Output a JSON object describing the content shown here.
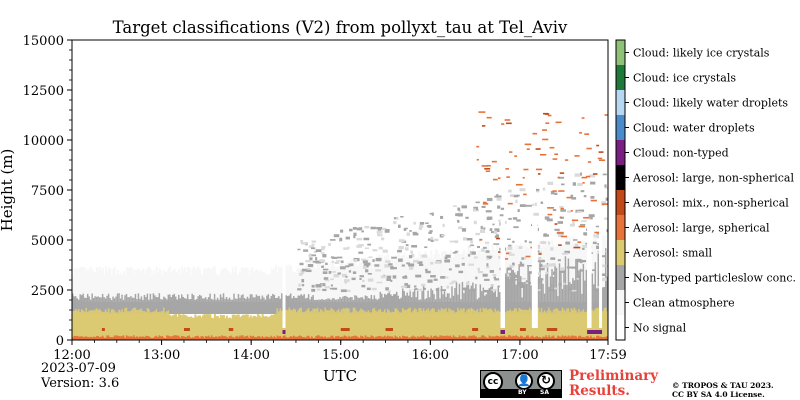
{
  "chart_data": {
    "type": "heatmap",
    "title": "Target classifications (V2) from pollyxt_tau at Tel_Aviv",
    "xlabel": "UTC",
    "ylabel": "Height (m)",
    "xlim": [
      "12:00",
      "17:59"
    ],
    "ylim": [
      0,
      15000
    ],
    "x_ticks": [
      "12:00",
      "13:00",
      "14:00",
      "15:00",
      "16:00",
      "17:00",
      "17:59"
    ],
    "y_ticks": [
      0,
      2500,
      5000,
      7500,
      10000,
      12500,
      15000
    ],
    "y_tick_labels": [
      "0",
      "2500",
      "5000",
      "7500",
      "10000",
      "12500",
      "15000"
    ],
    "legend_placement": "right colorbar",
    "classes": [
      {
        "label": "No signal",
        "color": "#ffffff"
      },
      {
        "label": "Clean atmosphere",
        "color": "#f7f7f7"
      },
      {
        "label": "Non-typed particleslow conc.",
        "color": "#a6a6a6"
      },
      {
        "label": "Aerosol: small",
        "color": "#dcca73"
      },
      {
        "label": "Aerosol: large, spherical",
        "color": "#e8733a"
      },
      {
        "label": "Aerosol: mix., non-spherical",
        "color": "#c24a1a"
      },
      {
        "label": "Aerosol: large, non-spherical",
        "color": "#000000"
      },
      {
        "label": "Cloud: non-typed",
        "color": "#7a1f82"
      },
      {
        "label": "Cloud: water droplets",
        "color": "#4a8bc9"
      },
      {
        "label": "Cloud: likely water droplets",
        "color": "#b7d8f2"
      },
      {
        "label": "Cloud: ice crystals",
        "color": "#1f7a3a"
      },
      {
        "label": "Cloud: likely ice crystals",
        "color": "#8fc277"
      }
    ],
    "layers": [
      {
        "class": "Aerosol: large, spherical",
        "x0": 0,
        "x1": 359,
        "y0": 0,
        "y1": 150
      },
      {
        "class": "Aerosol: small",
        "x0": 0,
        "x1": 359,
        "y0": 150,
        "y1": 1500
      },
      {
        "class": "Non-typed particleslow conc.",
        "x0": 0,
        "x1": 359,
        "y0": 1500,
        "y1": 2000
      },
      {
        "class": "Clean atmosphere",
        "x0": 0,
        "x1": 359,
        "y0": 2000,
        "y1": 3200
      }
    ],
    "data_gaps_minutes": [
      [
        141,
        143
      ],
      [
        287,
        290
      ],
      [
        308,
        312
      ],
      [
        345,
        348
      ],
      [
        353,
        355
      ]
    ]
  },
  "meta": {
    "date": "2023-07-09",
    "version": "Version: 3.6",
    "preliminary": [
      "Preliminary",
      "Results."
    ],
    "copyright": [
      "© TROPOS & TAU 2023.",
      "CC BY SA 4.0 License."
    ],
    "cc_badge": {
      "by": "BY",
      "sa": "SA",
      "cc": "cc"
    }
  }
}
